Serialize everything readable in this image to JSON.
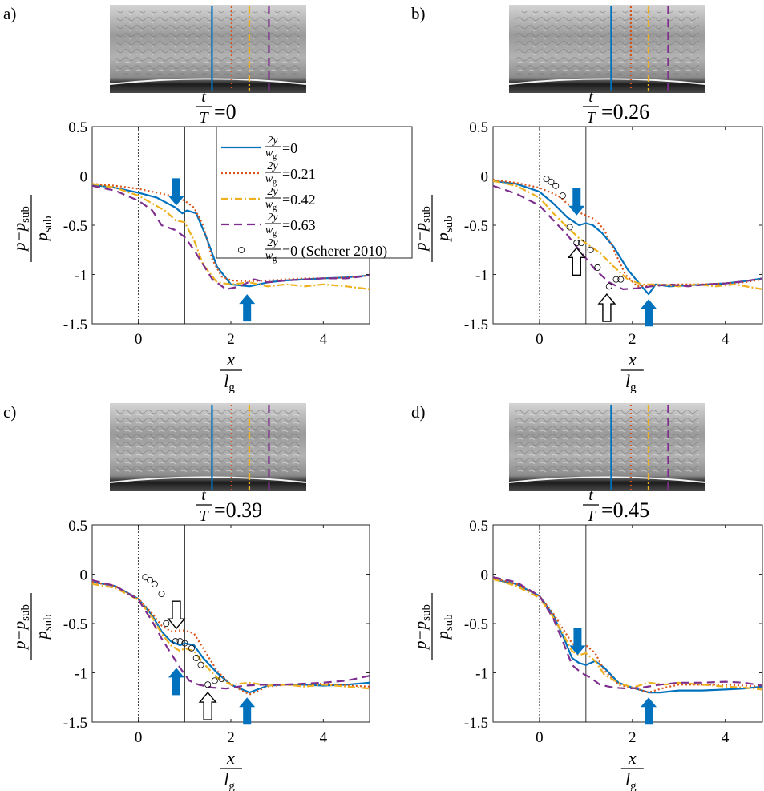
{
  "figure": {
    "colors": {
      "line_2y0": "#0072BD",
      "line_2y021": "#D95319",
      "line_2y042": "#EDB120",
      "line_2y063": "#7E2F8E",
      "marker_scherer": "#000000",
      "arrow_fill": "#0072BD"
    },
    "legend": {
      "placement": "inside-top-right of panel a",
      "entries": [
        {
          "num": "2y",
          "den": "w",
          "den_sub": "g",
          "suffix": "=0"
        },
        {
          "num": "2y",
          "den": "w",
          "den_sub": "g",
          "suffix": "=0.21"
        },
        {
          "num": "2y",
          "den": "w",
          "den_sub": "g",
          "suffix": "=0.42"
        },
        {
          "num": "2y",
          "den": "w",
          "den_sub": "g",
          "suffix": "=0.63"
        },
        {
          "num": "2y",
          "den": "w",
          "den_sub": "g",
          "suffix": "=0 (Scherer 2010)"
        }
      ]
    },
    "axis": {
      "ylabel_num": "p−p",
      "ylabel_num_sub": "sub",
      "ylabel_den": "p",
      "ylabel_den_sub": "sub",
      "xlabel_num": "x",
      "xlabel_den": "l",
      "xlabel_den_sub": "g"
    },
    "time_label_num": "t",
    "time_label_den": "T"
  },
  "chart_data": [
    {
      "type": "line",
      "panel_label": "a)",
      "time_value": "=0",
      "xlim": [
        -1,
        5
      ],
      "ylim": [
        -1.5,
        0.5
      ],
      "xticks": [
        0,
        2,
        4
      ],
      "xtick_labels": [
        "0",
        "2",
        "4"
      ],
      "yticks": [
        0.5,
        0,
        -0.5,
        -1,
        -1.5
      ],
      "ytick_labels": [
        "0.5",
        "0",
        "-0.5",
        "-1",
        "-1.5"
      ],
      "vertical_lines": [
        {
          "x": 0,
          "style": "dotted"
        },
        {
          "x": 1,
          "style": "solid"
        }
      ],
      "series": [
        {
          "x": [
            -1,
            -0.5,
            0,
            0.4,
            0.8,
            0.95,
            1.05,
            1.25,
            1.45,
            1.7,
            2.0,
            2.4,
            2.8,
            3.2,
            3.6,
            4.0,
            4.5,
            5.0
          ],
          "y": [
            -0.09,
            -0.12,
            -0.17,
            -0.22,
            -0.32,
            -0.38,
            -0.35,
            -0.38,
            -0.6,
            -0.92,
            -1.1,
            -1.12,
            -1.08,
            -1.06,
            -1.05,
            -1.04,
            -1.03,
            -1.01
          ]
        },
        {
          "x": [
            -1,
            -0.5,
            0,
            0.4,
            0.8,
            1.0,
            1.2,
            1.4,
            1.6,
            1.8,
            2.0,
            2.4,
            2.8,
            3.2,
            3.6,
            4.0,
            4.5,
            5.0
          ],
          "y": [
            -0.08,
            -0.1,
            -0.13,
            -0.17,
            -0.21,
            -0.25,
            -0.32,
            -0.5,
            -0.85,
            -1.02,
            -1.06,
            -1.07,
            -1.06,
            -1.05,
            -1.04,
            -1.04,
            -1.03,
            -1.01
          ]
        },
        {
          "x": [
            -1,
            -0.5,
            0,
            0.3,
            0.6,
            0.8,
            1.0,
            1.2,
            1.4,
            1.7,
            2.0,
            2.4,
            2.8,
            3.2,
            3.6,
            4.0,
            4.5,
            5.0
          ],
          "y": [
            -0.08,
            -0.12,
            -0.2,
            -0.28,
            -0.36,
            -0.45,
            -0.47,
            -0.65,
            -0.9,
            -1.08,
            -1.1,
            -1.08,
            -1.12,
            -1.1,
            -1.12,
            -1.1,
            -1.12,
            -1.15
          ]
        },
        {
          "x": [
            -1,
            -0.5,
            0,
            0.3,
            0.5,
            0.8,
            1.0,
            1.2,
            1.4,
            1.6,
            1.9,
            2.2,
            2.5,
            2.8,
            3.2,
            3.6,
            4.0,
            4.5,
            5.0
          ],
          "y": [
            -0.1,
            -0.15,
            -0.25,
            -0.35,
            -0.5,
            -0.55,
            -0.62,
            -0.75,
            -0.9,
            -1.05,
            -1.15,
            -1.12,
            -1.05,
            -1.08,
            -1.06,
            -1.05,
            -1.04,
            -1.04,
            -1.01
          ]
        }
      ],
      "markers": {
        "x": [],
        "y": []
      },
      "arrows_filled": [
        {
          "x": 0.82,
          "y": -0.3,
          "dir": "down"
        },
        {
          "x": 2.35,
          "y": -1.2,
          "dir": "up"
        }
      ],
      "arrows_hollow": []
    },
    {
      "type": "line",
      "panel_label": "b)",
      "time_value": "=0.26",
      "xlim": [
        -1,
        4.8
      ],
      "ylim": [
        -1.5,
        0.5
      ],
      "xticks": [
        0,
        2,
        4
      ],
      "xtick_labels": [
        "0",
        "2",
        "4"
      ],
      "yticks": [
        0.5,
        0,
        -0.5,
        -1,
        -1.5
      ],
      "ytick_labels": [
        "0.5",
        "0",
        "-0.5",
        "-1",
        "-1.5"
      ],
      "vertical_lines": [
        {
          "x": 0,
          "style": "dotted"
        },
        {
          "x": 1,
          "style": "solid"
        }
      ],
      "series": [
        {
          "x": [
            -1,
            -0.5,
            0,
            0.3,
            0.6,
            0.85,
            1.0,
            1.15,
            1.35,
            1.6,
            1.9,
            2.2,
            2.35,
            2.5,
            2.8,
            3.2,
            3.6,
            4.0,
            4.4,
            4.8
          ],
          "y": [
            -0.05,
            -0.08,
            -0.16,
            -0.28,
            -0.42,
            -0.5,
            -0.48,
            -0.5,
            -0.58,
            -0.72,
            -0.95,
            -1.12,
            -1.2,
            -1.1,
            -1.12,
            -1.11,
            -1.1,
            -1.09,
            -1.07,
            -1.04
          ]
        },
        {
          "x": [
            -1,
            -0.5,
            0,
            0.4,
            0.8,
            1.0,
            1.2,
            1.4,
            1.6,
            1.85,
            2.1,
            2.5,
            3.0,
            3.5,
            4.0,
            4.4,
            4.8
          ],
          "y": [
            -0.04,
            -0.07,
            -0.12,
            -0.2,
            -0.36,
            -0.4,
            -0.44,
            -0.55,
            -0.75,
            -1.0,
            -1.12,
            -1.11,
            -1.1,
            -1.1,
            -1.09,
            -1.08,
            -1.05
          ]
        },
        {
          "x": [
            -1,
            -0.5,
            0,
            0.3,
            0.6,
            0.85,
            1.05,
            1.3,
            1.6,
            1.9,
            2.2,
            2.6,
            3.0,
            3.4,
            3.8,
            4.2,
            4.8
          ],
          "y": [
            -0.05,
            -0.1,
            -0.22,
            -0.38,
            -0.52,
            -0.63,
            -0.7,
            -0.78,
            -0.92,
            -1.05,
            -1.1,
            -1.1,
            -1.12,
            -1.1,
            -1.12,
            -1.1,
            -1.15
          ]
        },
        {
          "x": [
            -1,
            -0.5,
            0,
            0.3,
            0.6,
            0.9,
            1.2,
            1.5,
            1.8,
            2.1,
            2.4,
            2.8,
            3.2,
            3.6,
            4.0,
            4.4,
            4.8
          ],
          "y": [
            -0.1,
            -0.18,
            -0.3,
            -0.45,
            -0.6,
            -0.78,
            -0.95,
            -1.08,
            -1.15,
            -1.14,
            -1.12,
            -1.1,
            -1.12,
            -1.1,
            -1.09,
            -1.07,
            -1.04
          ]
        }
      ],
      "markers": {
        "x": [
          0.15,
          0.25,
          0.35,
          0.5,
          0.65,
          0.8,
          0.9,
          1.1,
          1.25,
          1.5,
          1.65,
          1.75
        ],
        "y": [
          -0.03,
          -0.06,
          -0.1,
          -0.2,
          -0.52,
          -0.68,
          -0.68,
          -0.75,
          -0.93,
          -1.12,
          -1.05,
          -1.05
        ]
      },
      "arrows_filled": [
        {
          "x": 0.8,
          "y": -0.4,
          "dir": "down"
        },
        {
          "x": 2.35,
          "y": -1.25,
          "dir": "up"
        }
      ],
      "arrows_hollow": [
        {
          "x": 0.8,
          "y": -0.73,
          "dir": "up"
        },
        {
          "x": 1.45,
          "y": -1.2,
          "dir": "up"
        }
      ]
    },
    {
      "type": "line",
      "panel_label": "c)",
      "time_value": "=0.39",
      "xlim": [
        -1,
        5
      ],
      "ylim": [
        -1.5,
        0.5
      ],
      "xticks": [
        0,
        2,
        4
      ],
      "xtick_labels": [
        "0",
        "2",
        "4"
      ],
      "yticks": [
        0.5,
        0,
        -0.5,
        -1,
        -1.5
      ],
      "ytick_labels": [
        "0.5",
        "0",
        "-0.5",
        "-1",
        "-1.5"
      ],
      "vertical_lines": [
        {
          "x": 0,
          "style": "dotted"
        },
        {
          "x": 1,
          "style": "solid"
        }
      ],
      "series": [
        {
          "x": [
            -1,
            -0.5,
            0,
            0.3,
            0.5,
            0.7,
            0.9,
            1.0,
            1.2,
            1.4,
            1.7,
            2.0,
            2.4,
            2.8,
            3.2,
            3.6,
            4.0,
            4.5,
            5.0
          ],
          "y": [
            -0.08,
            -0.12,
            -0.25,
            -0.42,
            -0.58,
            -0.68,
            -0.72,
            -0.7,
            -0.72,
            -0.85,
            -1.0,
            -1.12,
            -1.2,
            -1.13,
            -1.12,
            -1.12,
            -1.13,
            -1.12,
            -1.1
          ]
        },
        {
          "x": [
            -1,
            -0.5,
            0,
            0.3,
            0.5,
            0.7,
            0.9,
            1.0,
            1.2,
            1.4,
            1.7,
            2.0,
            2.4,
            2.8,
            3.2,
            3.6,
            4.0,
            4.5,
            5.0
          ],
          "y": [
            -0.08,
            -0.12,
            -0.25,
            -0.4,
            -0.52,
            -0.58,
            -0.57,
            -0.57,
            -0.6,
            -0.75,
            -0.98,
            -1.12,
            -1.22,
            -1.14,
            -1.12,
            -1.12,
            -1.11,
            -1.13,
            -1.14
          ]
        },
        {
          "x": [
            -1,
            -0.5,
            0,
            0.3,
            0.5,
            0.7,
            0.9,
            1.0,
            1.2,
            1.4,
            1.7,
            2.0,
            2.4,
            2.8,
            3.2,
            3.6,
            4.0,
            4.5,
            5.0
          ],
          "y": [
            -0.1,
            -0.14,
            -0.26,
            -0.44,
            -0.6,
            -0.72,
            -0.78,
            -0.75,
            -0.78,
            -0.9,
            -1.05,
            -1.12,
            -1.1,
            -1.13,
            -1.12,
            -1.14,
            -1.12,
            -1.14,
            -1.16
          ]
        },
        {
          "x": [
            -1,
            -0.5,
            0,
            0.3,
            0.5,
            0.7,
            0.9,
            1.1,
            1.3,
            1.6,
            1.9,
            2.3,
            2.7,
            3.1,
            3.6,
            4.0,
            4.5,
            5.0
          ],
          "y": [
            -0.06,
            -0.12,
            -0.26,
            -0.48,
            -0.65,
            -0.8,
            -0.95,
            -1.08,
            -1.12,
            -1.15,
            -1.16,
            -1.13,
            -1.12,
            -1.12,
            -1.11,
            -1.1,
            -1.08,
            -1.03
          ]
        }
      ],
      "markers": {
        "x": [
          0.15,
          0.25,
          0.35,
          0.5,
          0.6,
          0.8,
          0.9,
          1.0,
          1.15,
          1.25,
          1.35,
          1.5,
          1.65,
          1.8
        ],
        "y": [
          -0.03,
          -0.06,
          -0.1,
          -0.2,
          -0.5,
          -0.68,
          -0.68,
          -0.7,
          -0.75,
          -0.85,
          -0.92,
          -1.12,
          -1.08,
          -1.06
        ]
      },
      "arrows_filled": [
        {
          "x": 0.82,
          "y": -0.95,
          "dir": "up"
        },
        {
          "x": 2.35,
          "y": -1.25,
          "dir": "up"
        }
      ],
      "arrows_hollow": [
        {
          "x": 0.82,
          "y": -0.55,
          "dir": "down"
        },
        {
          "x": 1.5,
          "y": -1.2,
          "dir": "up"
        }
      ]
    },
    {
      "type": "line",
      "panel_label": "d)",
      "time_value": "=0.45",
      "xlim": [
        -1,
        4.8
      ],
      "ylim": [
        -1.5,
        0.5
      ],
      "xticks": [
        0,
        2,
        4
      ],
      "xtick_labels": [
        "0",
        "2",
        "4"
      ],
      "yticks": [
        0.5,
        0,
        -0.5,
        -1,
        -1.5
      ],
      "ytick_labels": [
        "0.5",
        "0",
        "-0.5",
        "-1",
        "-1.5"
      ],
      "vertical_lines": [
        {
          "x": 0,
          "style": "dotted"
        },
        {
          "x": 1,
          "style": "solid"
        }
      ],
      "series": [
        {
          "x": [
            -1,
            -0.5,
            0,
            0.3,
            0.5,
            0.7,
            0.85,
            1.0,
            1.2,
            1.4,
            1.7,
            2.0,
            2.35,
            2.6,
            3.0,
            3.5,
            4.0,
            4.4,
            4.8
          ],
          "y": [
            -0.05,
            -0.1,
            -0.22,
            -0.42,
            -0.62,
            -0.85,
            -0.9,
            -0.92,
            -0.88,
            -0.95,
            -1.1,
            -1.15,
            -1.2,
            -1.2,
            -1.18,
            -1.18,
            -1.17,
            -1.16,
            -1.14
          ]
        },
        {
          "x": [
            -1,
            -0.5,
            0,
            0.3,
            0.5,
            0.7,
            0.85,
            1.0,
            1.2,
            1.4,
            1.7,
            2.0,
            2.35,
            2.7,
            3.0,
            3.5,
            4.0,
            4.4,
            4.8
          ],
          "y": [
            -0.04,
            -0.1,
            -0.22,
            -0.4,
            -0.55,
            -0.7,
            -0.75,
            -0.72,
            -0.8,
            -0.98,
            -1.12,
            -1.15,
            -1.2,
            -1.15,
            -1.12,
            -1.12,
            -1.12,
            -1.13,
            -1.14
          ]
        },
        {
          "x": [
            -1,
            -0.5,
            0,
            0.3,
            0.5,
            0.7,
            0.85,
            1.0,
            1.2,
            1.4,
            1.7,
            2.0,
            2.35,
            2.7,
            3.0,
            3.5,
            4.0,
            4.4,
            4.8
          ],
          "y": [
            -0.05,
            -0.12,
            -0.24,
            -0.44,
            -0.6,
            -0.78,
            -0.82,
            -0.8,
            -0.88,
            -1.02,
            -1.1,
            -1.15,
            -1.1,
            -1.12,
            -1.1,
            -1.12,
            -1.14,
            -1.15,
            -1.17
          ]
        },
        {
          "x": [
            -1,
            -0.5,
            0,
            0.3,
            0.5,
            0.7,
            0.9,
            1.1,
            1.3,
            1.6,
            1.9,
            2.2,
            2.6,
            3.0,
            3.5,
            4.0,
            4.4,
            4.8
          ],
          "y": [
            -0.03,
            -0.08,
            -0.22,
            -0.45,
            -0.68,
            -0.92,
            -1.0,
            -1.05,
            -1.12,
            -1.15,
            -1.16,
            -1.15,
            -1.12,
            -1.1,
            -1.1,
            -1.09,
            -1.1,
            -1.13
          ]
        }
      ],
      "markers": {
        "x": [],
        "y": []
      },
      "arrows_filled": [
        {
          "x": 0.82,
          "y": -0.82,
          "dir": "down"
        },
        {
          "x": 2.35,
          "y": -1.25,
          "dir": "up"
        }
      ],
      "arrows_hollow": []
    }
  ]
}
